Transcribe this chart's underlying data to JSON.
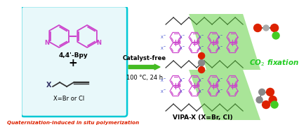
{
  "bg_color": "#ffffff",
  "box_color": "#00c8d4",
  "box_bg": "#e8f8fa",
  "arrow_color": "#44bb22",
  "bpy_color": "#cc44cc",
  "alkyne_color": "#333366",
  "polymer_color": "#cc44cc",
  "x_label_color": "#3344cc",
  "bottom_text": "Quaternization-induced in situ polymerization",
  "bottom_text_color": "#dd2200",
  "arrow_text1": "Catalyst-free",
  "arrow_text2": "100 °C, 24 h",
  "bpy_label": "4,4'-Bpy",
  "alkyne_label": "X=Br or Cl",
  "plus_sign": "+",
  "product_label": "VIPA-X (X=Br, CI)",
  "co2_label": "CO$_2$ fixation",
  "co2_color": "#22cc22",
  "green_band": "#44cc22",
  "backbone_color": "#333333",
  "red_atom": "#dd2200",
  "gray_atom": "#888888",
  "green_atom": "#44cc22"
}
